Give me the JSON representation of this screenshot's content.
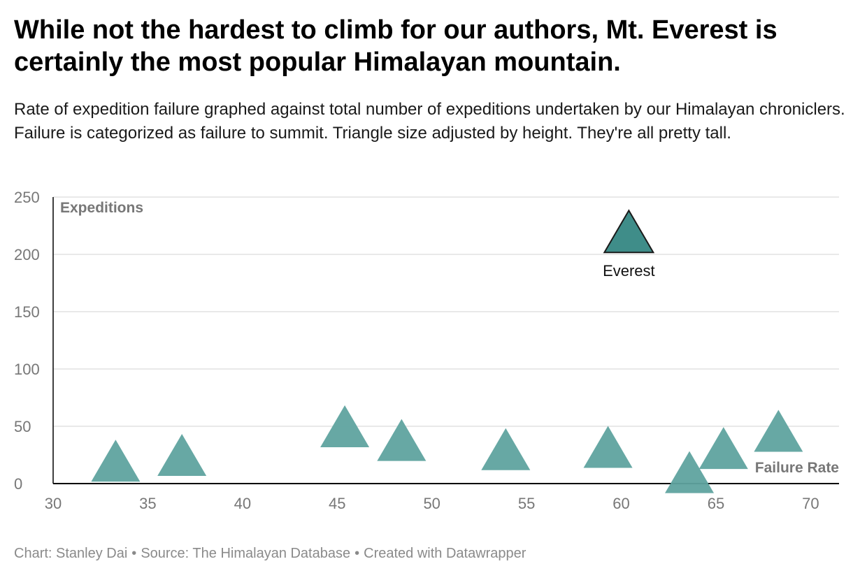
{
  "title": "While not the hardest to climb for our authors, Mt. Everest is certainly the most popular Himalayan mountain.",
  "subtitle": "Rate of expedition failure graphed against total number of expeditions undertaken by our Himalayan chroniclers. Failure is categorized as failure to summit. Triangle size adjusted by height. They're all pretty tall.",
  "footer": {
    "credit": "Chart: Stanley Dai",
    "source": "Source: The Himalayan Database",
    "tool": "Created with Datawrapper",
    "separator": "•"
  },
  "chart_data": {
    "type": "scatter",
    "marker": "triangle",
    "xlabel": "Failure Rate",
    "ylabel": "Expeditions",
    "xlim": [
      30,
      71.5
    ],
    "ylim": [
      0,
      250
    ],
    "xticks": [
      30,
      35,
      40,
      45,
      50,
      55,
      60,
      65,
      70
    ],
    "yticks": [
      0,
      50,
      100,
      150,
      200,
      250
    ],
    "grid": true,
    "colors": {
      "marker": "#5fa39f",
      "highlight": "#3f8d89",
      "highlight_stroke": "#1a1a1a",
      "grid": "#e2e2e2",
      "axis": "#000000",
      "tick_label": "#777777",
      "axis_label": "#777777"
    },
    "points": [
      {
        "x": 33.3,
        "y": 20,
        "label": ""
      },
      {
        "x": 36.8,
        "y": 25,
        "label": ""
      },
      {
        "x": 45.4,
        "y": 50,
        "label": ""
      },
      {
        "x": 48.4,
        "y": 38,
        "label": ""
      },
      {
        "x": 53.9,
        "y": 30,
        "label": ""
      },
      {
        "x": 59.3,
        "y": 32,
        "label": ""
      },
      {
        "x": 60.4,
        "y": 220,
        "label": "Everest",
        "highlight": true
      },
      {
        "x": 63.6,
        "y": 10,
        "label": ""
      },
      {
        "x": 65.4,
        "y": 31,
        "label": ""
      },
      {
        "x": 68.3,
        "y": 46,
        "label": ""
      }
    ]
  }
}
